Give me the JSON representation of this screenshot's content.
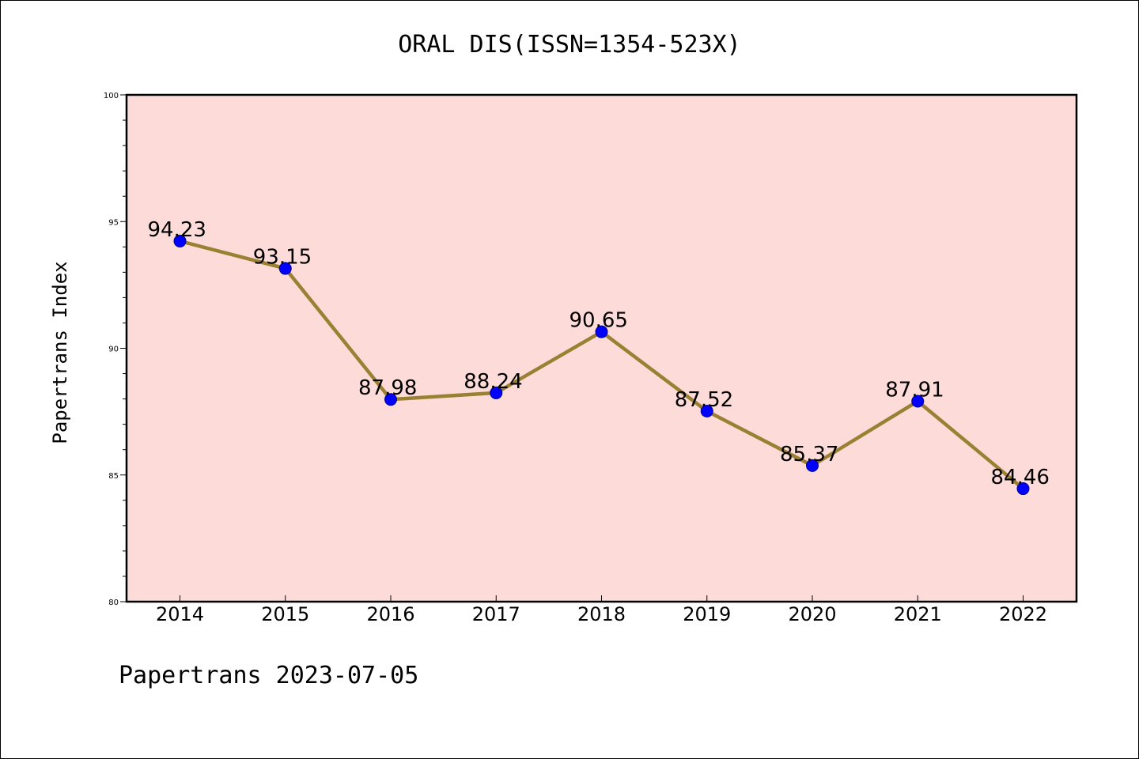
{
  "chart_data": {
    "type": "line",
    "title": "ORAL DIS(ISSN=1354-523X)",
    "ylabel": "Papertrans Index",
    "xlabel": "",
    "x": [
      "2014",
      "2015",
      "2016",
      "2017",
      "2018",
      "2019",
      "2020",
      "2021",
      "2022"
    ],
    "series": [
      {
        "values": [
          94.23,
          93.15,
          87.98,
          88.24,
          90.65,
          87.52,
          85.37,
          87.91,
          84.46
        ],
        "labels": [
          "94.23",
          "93.15",
          "87.98",
          "88.24",
          "90.65",
          "87.52",
          "85.37",
          "87.91",
          "84.46"
        ],
        "line_color": "#998033",
        "marker_color": "#0000ff"
      }
    ],
    "ylim": [
      80,
      100
    ],
    "yticks": [
      80,
      85,
      90,
      95,
      100
    ],
    "ytick_labels": [
      "80",
      "85",
      "90",
      "95",
      "100"
    ],
    "grid": false,
    "legend": "none",
    "plot_background": "#fddbd8"
  },
  "footer": "Papertrans 2023-07-05"
}
